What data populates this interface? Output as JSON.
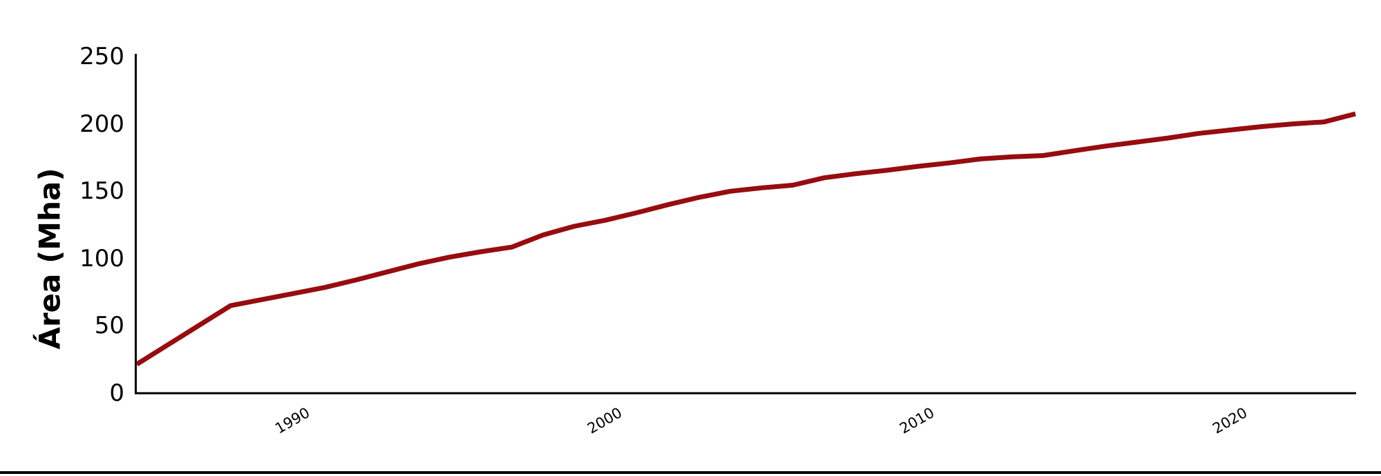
{
  "chart_data": {
    "type": "line",
    "title": "",
    "xlabel": "",
    "ylabel": "Área (Mha)",
    "x": [
      1985,
      1986,
      1987,
      1988,
      1989,
      1990,
      1991,
      1992,
      1993,
      1994,
      1995,
      1996,
      1997,
      1998,
      1999,
      2000,
      2001,
      2002,
      2003,
      2004,
      2005,
      2006,
      2007,
      2008,
      2009,
      2010,
      2011,
      2012,
      2013,
      2014,
      2015,
      2016,
      2017,
      2018,
      2019,
      2020,
      2021,
      2022,
      2023,
      2024
    ],
    "series": [
      {
        "name": "Área",
        "color": "#970C0F",
        "values": [
          21.5,
          36,
          50.5,
          65,
          69.5,
          74,
          78.5,
          84,
          90,
          96,
          101,
          105,
          108.5,
          117.5,
          124,
          128.5,
          134,
          140,
          145.5,
          150,
          152.5,
          154.5,
          160,
          163,
          165.5,
          168.5,
          171,
          174,
          175.5,
          176.5,
          180,
          183.5,
          186.5,
          189.5,
          193,
          195.5,
          198,
          200,
          201.5,
          207.5
        ]
      }
    ],
    "xlim": [
      1985,
      2024
    ],
    "ylim": [
      0,
      250
    ],
    "xticks": [
      "1990",
      "2000",
      "2010",
      "2020"
    ],
    "xtick_values": [
      1990,
      2000,
      2010,
      2020
    ],
    "yticks": [
      "0",
      "50",
      "100",
      "150",
      "200",
      "250"
    ],
    "ytick_values": [
      0,
      50,
      100,
      150,
      200,
      250
    ],
    "grid": false,
    "legend": false,
    "axis_color": "#000000",
    "background": "#ffffff"
  },
  "page": {
    "bottom_rule_color": "#000000"
  }
}
